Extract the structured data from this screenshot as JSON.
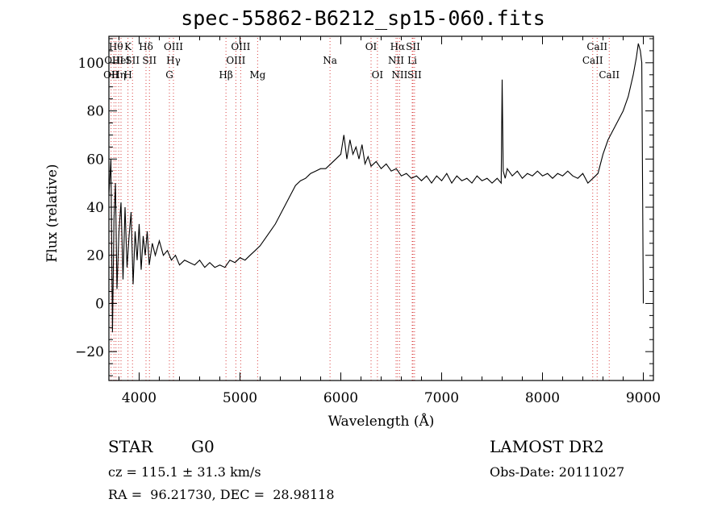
{
  "title": "spec-55862-B6212_sp15-060.fits",
  "info": {
    "class": "STAR",
    "subclass": "G0",
    "survey": "LAMOST DR2",
    "cz": "cz = 115.1 ± 31.3 km/s",
    "obs_date": "Obs-Date: 20111027",
    "coords": "RA =  96.21730, DEC =  28.98118"
  },
  "chart_data": {
    "type": "line",
    "xlabel": "Wavelength (Å)",
    "ylabel": "Flux (relative)",
    "xlim": [
      3700,
      9100
    ],
    "ylim": [
      -32,
      111
    ],
    "x_ticks": [
      4000,
      5000,
      6000,
      7000,
      8000,
      9000
    ],
    "y_ticks": [
      -20,
      0,
      20,
      40,
      60,
      80,
      100
    ],
    "grid": false,
    "series": [
      {
        "points": [
          [
            3700,
            45
          ],
          [
            3720,
            60
          ],
          [
            3735,
            -12
          ],
          [
            3750,
            35
          ],
          [
            3765,
            50
          ],
          [
            3780,
            6
          ],
          [
            3800,
            30
          ],
          [
            3820,
            42
          ],
          [
            3840,
            10
          ],
          [
            3860,
            40
          ],
          [
            3880,
            15
          ],
          [
            3900,
            28
          ],
          [
            3920,
            38
          ],
          [
            3940,
            8
          ],
          [
            3960,
            30
          ],
          [
            3980,
            18
          ],
          [
            4000,
            33
          ],
          [
            4020,
            14
          ],
          [
            4040,
            28
          ],
          [
            4060,
            20
          ],
          [
            4080,
            30
          ],
          [
            4100,
            16
          ],
          [
            4130,
            25
          ],
          [
            4160,
            20
          ],
          [
            4200,
            26
          ],
          [
            4240,
            20
          ],
          [
            4280,
            22
          ],
          [
            4320,
            18
          ],
          [
            4360,
            20
          ],
          [
            4400,
            16
          ],
          [
            4450,
            18
          ],
          [
            4500,
            17
          ],
          [
            4550,
            16
          ],
          [
            4600,
            18
          ],
          [
            4650,
            15
          ],
          [
            4700,
            17
          ],
          [
            4750,
            15
          ],
          [
            4800,
            16
          ],
          [
            4850,
            15
          ],
          [
            4900,
            18
          ],
          [
            4950,
            17
          ],
          [
            5000,
            19
          ],
          [
            5050,
            18
          ],
          [
            5100,
            20
          ],
          [
            5150,
            22
          ],
          [
            5200,
            24
          ],
          [
            5250,
            27
          ],
          [
            5300,
            30
          ],
          [
            5350,
            33
          ],
          [
            5400,
            37
          ],
          [
            5450,
            41
          ],
          [
            5500,
            45
          ],
          [
            5550,
            49
          ],
          [
            5600,
            51
          ],
          [
            5650,
            52
          ],
          [
            5700,
            54
          ],
          [
            5750,
            55
          ],
          [
            5800,
            56
          ],
          [
            5850,
            56
          ],
          [
            5900,
            58
          ],
          [
            5950,
            60
          ],
          [
            6000,
            62
          ],
          [
            6030,
            70
          ],
          [
            6060,
            60
          ],
          [
            6090,
            68
          ],
          [
            6120,
            62
          ],
          [
            6150,
            65
          ],
          [
            6180,
            60
          ],
          [
            6210,
            66
          ],
          [
            6240,
            58
          ],
          [
            6270,
            61
          ],
          [
            6300,
            57
          ],
          [
            6350,
            59
          ],
          [
            6400,
            56
          ],
          [
            6450,
            58
          ],
          [
            6500,
            55
          ],
          [
            6550,
            56
          ],
          [
            6600,
            53
          ],
          [
            6650,
            54
          ],
          [
            6700,
            52
          ],
          [
            6750,
            53
          ],
          [
            6800,
            51
          ],
          [
            6850,
            53
          ],
          [
            6900,
            50
          ],
          [
            6950,
            53
          ],
          [
            7000,
            51
          ],
          [
            7050,
            54
          ],
          [
            7100,
            50
          ],
          [
            7150,
            53
          ],
          [
            7200,
            51
          ],
          [
            7250,
            52
          ],
          [
            7300,
            50
          ],
          [
            7350,
            53
          ],
          [
            7400,
            51
          ],
          [
            7450,
            52
          ],
          [
            7500,
            50
          ],
          [
            7550,
            52
          ],
          [
            7590,
            50
          ],
          [
            7600,
            93
          ],
          [
            7610,
            55
          ],
          [
            7630,
            52
          ],
          [
            7650,
            56
          ],
          [
            7700,
            53
          ],
          [
            7750,
            55
          ],
          [
            7800,
            52
          ],
          [
            7850,
            54
          ],
          [
            7900,
            53
          ],
          [
            7950,
            55
          ],
          [
            8000,
            53
          ],
          [
            8050,
            54
          ],
          [
            8100,
            52
          ],
          [
            8150,
            54
          ],
          [
            8200,
            53
          ],
          [
            8250,
            55
          ],
          [
            8300,
            53
          ],
          [
            8350,
            52
          ],
          [
            8400,
            54
          ],
          [
            8450,
            50
          ],
          [
            8500,
            52
          ],
          [
            8550,
            54
          ],
          [
            8600,
            62
          ],
          [
            8650,
            68
          ],
          [
            8700,
            72
          ],
          [
            8750,
            76
          ],
          [
            8800,
            80
          ],
          [
            8850,
            86
          ],
          [
            8900,
            95
          ],
          [
            8930,
            102
          ],
          [
            8950,
            108
          ],
          [
            8970,
            105
          ],
          [
            8985,
            100
          ],
          [
            9000,
            0
          ]
        ]
      }
    ],
    "lines": [
      {
        "wave": 3722,
        "labels": [
          {
            "text": "OII",
            "row": 3
          }
        ]
      },
      {
        "wave": 3750,
        "labels": [
          {
            "text": "OIII",
            "row": 2
          }
        ]
      },
      {
        "wave": 3770,
        "labels": [
          {
            "text": "Hθ",
            "row": 1
          }
        ]
      },
      {
        "wave": 3797,
        "labels": [
          {
            "text": "Hη",
            "row": 3
          }
        ]
      },
      {
        "wave": 3820,
        "labels": [
          {
            "text": "HeI",
            "row": 2
          }
        ]
      },
      {
        "wave": 3889,
        "labels": [
          {
            "text": "K",
            "row": 1
          },
          {
            "text": "H",
            "row": 3
          }
        ]
      },
      {
        "wave": 3934,
        "labels": [
          {
            "text": "SII",
            "row": 2
          }
        ]
      },
      {
        "wave": 4068,
        "labels": [
          {
            "text": "Hδ",
            "row": 1
          }
        ]
      },
      {
        "wave": 4102,
        "labels": [
          {
            "text": "SII",
            "row": 2
          }
        ]
      },
      {
        "wave": 4300,
        "labels": [
          {
            "text": "G",
            "row": 3
          }
        ]
      },
      {
        "wave": 4340,
        "labels": [
          {
            "text": "OIII",
            "row": 1
          },
          {
            "text": "Hγ",
            "row": 2
          }
        ]
      },
      {
        "wave": 4861,
        "labels": [
          {
            "text": "Hβ",
            "row": 3
          }
        ]
      },
      {
        "wave": 4959,
        "labels": [
          {
            "text": "OIII",
            "row": 2
          }
        ]
      },
      {
        "wave": 5007,
        "labels": [
          {
            "text": "OIII",
            "row": 1
          }
        ]
      },
      {
        "wave": 5175,
        "labels": [
          {
            "text": "Mg",
            "row": 3
          }
        ]
      },
      {
        "wave": 5893,
        "labels": [
          {
            "text": "Na",
            "row": 2
          }
        ]
      },
      {
        "wave": 6300,
        "labels": [
          {
            "text": "OI",
            "row": 1
          }
        ]
      },
      {
        "wave": 6363,
        "labels": [
          {
            "text": "OI",
            "row": 3
          }
        ]
      },
      {
        "wave": 6548,
        "labels": [
          {
            "text": "NII",
            "row": 2
          }
        ]
      },
      {
        "wave": 6563,
        "labels": [
          {
            "text": "Hα",
            "row": 1
          }
        ]
      },
      {
        "wave": 6583,
        "labels": [
          {
            "text": "NII",
            "row": 3
          }
        ]
      },
      {
        "wave": 6708,
        "labels": [
          {
            "text": "Li",
            "row": 2
          }
        ]
      },
      {
        "wave": 6716,
        "labels": [
          {
            "text": "SII",
            "row": 1
          }
        ]
      },
      {
        "wave": 6731,
        "labels": [
          {
            "text": "SII",
            "row": 3
          }
        ]
      },
      {
        "wave": 8498,
        "labels": [
          {
            "text": "CaII",
            "row": 2
          }
        ]
      },
      {
        "wave": 8542,
        "labels": [
          {
            "text": "CaII",
            "row": 1
          }
        ]
      },
      {
        "wave": 8662,
        "labels": [
          {
            "text": "CaII",
            "row": 3
          }
        ]
      }
    ]
  },
  "colors": {
    "spectrum": "#000000",
    "line_markers": "#d94040",
    "axes": "#000000"
  }
}
